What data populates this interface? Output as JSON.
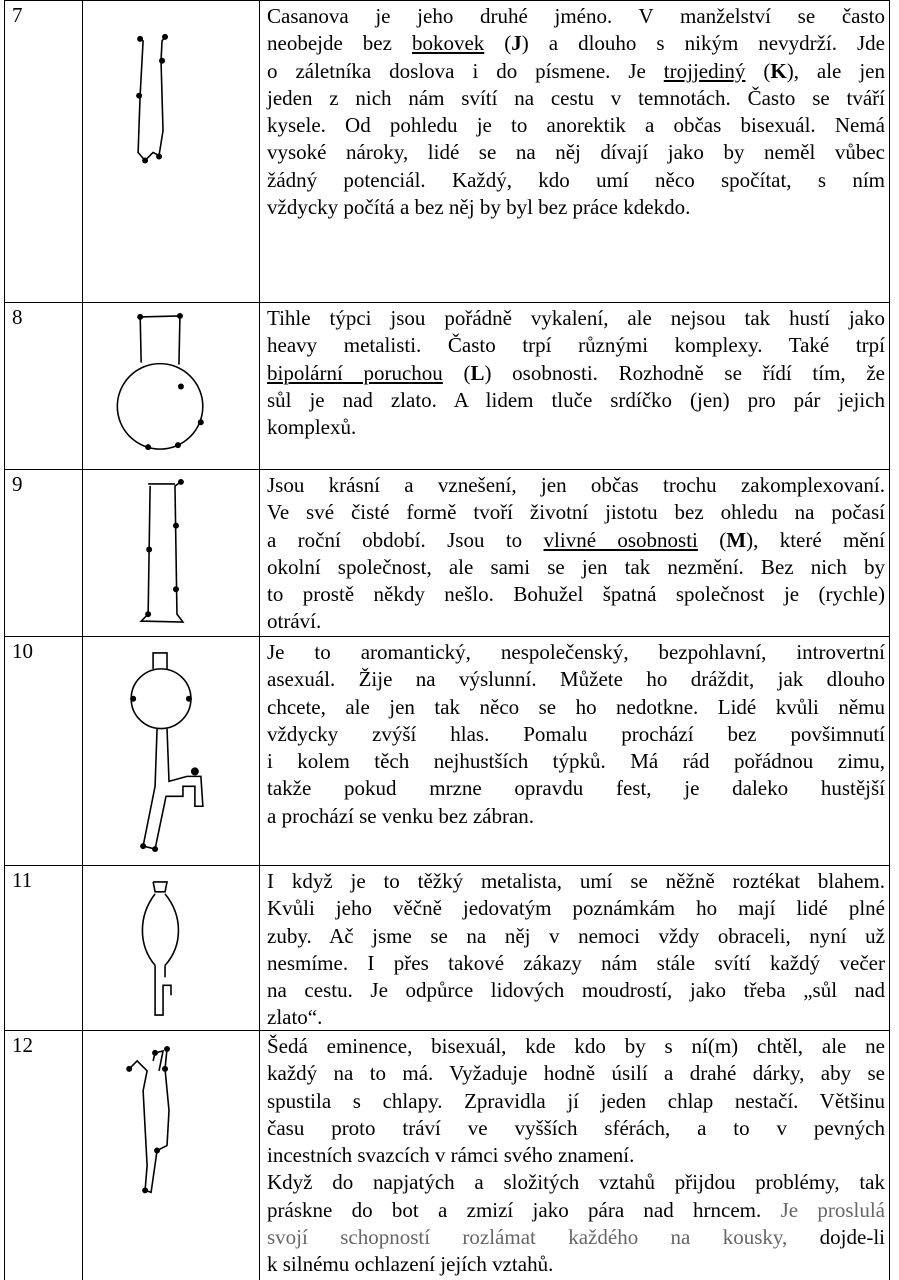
{
  "rows": [
    {
      "number": "7",
      "paragraphs": [
        [
          [
            "Casanova je jeho druhé jméno. V manželství se často"
          ],
          [
            "neobejde bez ",
            {
              "text": "bokovek",
              "style": "underline"
            },
            " (",
            {
              "text": "J",
              "style": "bold"
            },
            ") a dlouho s nikým nevydrží. Jde"
          ],
          [
            "o záletníka doslova i do písmene. Je ",
            {
              "text": "trojjediný",
              "style": "underline"
            },
            " (",
            {
              "text": "K",
              "style": "bold"
            },
            "), ale jen"
          ],
          [
            "jeden z nich nám svítí na cestu v temnotách. Často se tváří"
          ],
          [
            "kysele. Od pohledu je to anorektik a občas bisexuál. Nemá"
          ],
          [
            "vysoké nároky, lidé se na něj dívají jako by neměl vůbec"
          ],
          [
            "žádný potenciál. Každý, kdo umí něco spočítat, s ním"
          ],
          [
            "vždycky počítá a bez něj by byl bez práce kdekdo."
          ]
        ]
      ]
    },
    {
      "number": "8",
      "paragraphs": [
        [
          [
            "Tihle týpci jsou pořádně vykalení, ale nejsou tak hustí jako"
          ],
          [
            "heavy metalisti. Často trpí různými komplexy. Také trpí"
          ],
          [
            {
              "text": "bipolární poruchou",
              "style": "underline"
            },
            " (",
            {
              "text": "L",
              "style": "bold"
            },
            ") osobnosti. Rozhodně se řídí tím, že"
          ],
          [
            "sůl je nad zlato. A lidem tluče srdíčko (jen) pro pár jejich"
          ],
          [
            "komplexů."
          ]
        ]
      ]
    },
    {
      "number": "9",
      "paragraphs": [
        [
          [
            "Jsou krásní a vznešení, jen občas trochu zakomplexovaní."
          ],
          [
            "Ve své čisté formě tvoří životní jistotu bez ohledu na počasí"
          ],
          [
            "a roční období. Jsou to ",
            {
              "text": "vlivné osobnosti",
              "style": "underline"
            },
            " (",
            {
              "text": "M",
              "style": "bold"
            },
            "), které mění"
          ],
          [
            "okolní společnost, ale sami se jen tak nezmění. Bez nich by"
          ],
          [
            "to prostě někdy nešlo. Bohužel špatná společnost je (rychle)"
          ],
          [
            "otráví."
          ]
        ]
      ]
    },
    {
      "number": "10",
      "paragraphs": [
        [
          [
            "Je to aromantický, nespolečenský, bezpohlavní, introvertní"
          ],
          [
            "asexuál. Žije na výslunní. Můžete ho dráždit, jak dlouho"
          ],
          [
            "chcete, ale jen tak něco se ho nedotkne. Lidé kvůli němu"
          ],
          [
            "vždycky zvýší hlas. Pomalu prochází bez povšimnutí"
          ],
          [
            "i kolem těch nejhustších týpků. Má rád pořádnou zimu,"
          ],
          [
            "takže pokud mrzne opravdu fest, je daleko hustější"
          ],
          [
            "a prochází se venku bez zábran."
          ]
        ]
      ]
    },
    {
      "number": "11",
      "paragraphs": [
        [
          [
            "I když je to těžký metalista, umí se něžně roztékat blahem."
          ],
          [
            "Kvůli jeho věčně jedovatým poznámkám ho mají lidé plné"
          ],
          [
            "zuby. Ač jsme se na něj v nemoci vždy obraceli, nyní už"
          ],
          [
            "nesmíme. I přes takové zákazy nám stále svítí každý večer"
          ],
          [
            "na cestu. Je odpůrce lidových moudrostí, jako třeba „sůl nad"
          ],
          [
            "zlato“."
          ]
        ]
      ]
    },
    {
      "number": "12",
      "paragraphs": [
        [
          [
            "Šedá eminence, bisexuál, kde kdo by s ní(m) chtěl, ale ne"
          ],
          [
            "každý na to má. Vyžaduje hodně úsilí a drahé dárky, aby se"
          ],
          [
            "spustila s chlapy. Zpravidla jí jeden chlap nestačí. Většinu"
          ],
          [
            "času proto tráví ve vyšších sférách, a to v pevných"
          ],
          [
            "incestních svazcích v rámci svého znamení."
          ]
        ],
        [
          [
            "Když do napjatých a složitých vztahů přijdou problémy, tak"
          ],
          [
            "práskne do bot a zmizí jako pára nad hrncem. ",
            {
              "text": "Je proslulá",
              "style": "gray"
            }
          ],
          [
            {
              "text": "svojí schopností rozlámat každého na kousky,",
              "style": "gray"
            },
            " dojde-li"
          ],
          [
            "k silnému ochlazení jejích vztahů."
          ]
        ]
      ]
    }
  ]
}
